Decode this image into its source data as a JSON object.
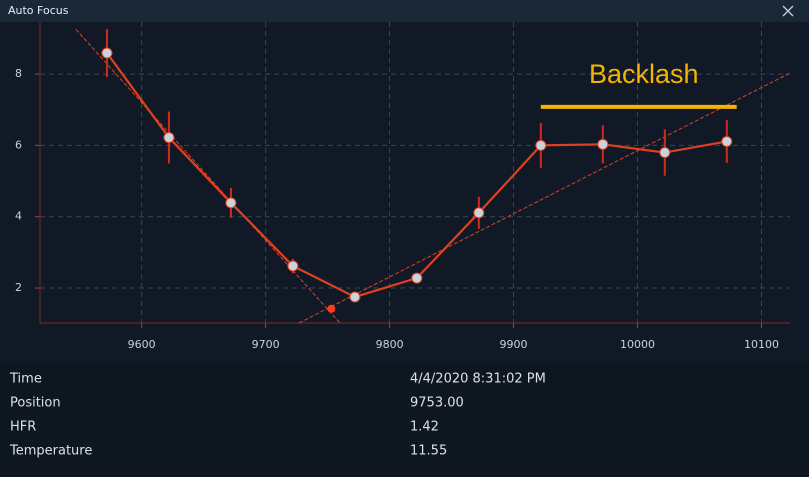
{
  "window": {
    "title": "Auto Focus"
  },
  "chart_data": {
    "type": "line",
    "x": [
      9572,
      9622,
      9672,
      9722,
      9772,
      9822,
      9872,
      9922,
      9972,
      10022,
      10072
    ],
    "series": [
      {
        "color": "#e0401f",
        "values": [
          8.59,
          6.22,
          4.39,
          2.62,
          1.75,
          2.28,
          4.11,
          6.0,
          6.03,
          5.8,
          6.11
        ],
        "errors": [
          0.67,
          0.73,
          0.42,
          0.2,
          0.08,
          0.1,
          0.45,
          0.63,
          0.53,
          0.65,
          0.6
        ],
        "error_color": "#d42a1e",
        "marker_color": "#c9d3de"
      }
    ],
    "trend_lines": [
      {
        "x": [
          9547,
          9760
        ],
        "y": [
          9.25,
          1.02
        ]
      },
      {
        "x": [
          9727,
          10123
        ],
        "y": [
          1.02,
          8.03
        ]
      }
    ],
    "trend_color": "#d8452a",
    "minimum": {
      "x": 9753,
      "y": 1.42,
      "color": "#ff3a1e"
    },
    "annotation": {
      "text": "Backlash",
      "color": "#f5b400",
      "x": [
        9922,
        10080
      ],
      "y": 7.08
    },
    "xlim": [
      9518,
      10123
    ],
    "ylim": [
      1.02,
      9.46
    ],
    "xticks": [
      9600,
      9700,
      9800,
      9900,
      10000,
      10100
    ],
    "yticks": [
      2,
      4,
      6,
      8
    ],
    "grid": true
  },
  "info": {
    "rows": [
      [
        "Time",
        "4/4/2020 8:31:02 PM"
      ],
      [
        "Position",
        "9753.00"
      ],
      [
        "HFR",
        "1.42"
      ],
      [
        "Temperature",
        "11.55"
      ]
    ]
  }
}
